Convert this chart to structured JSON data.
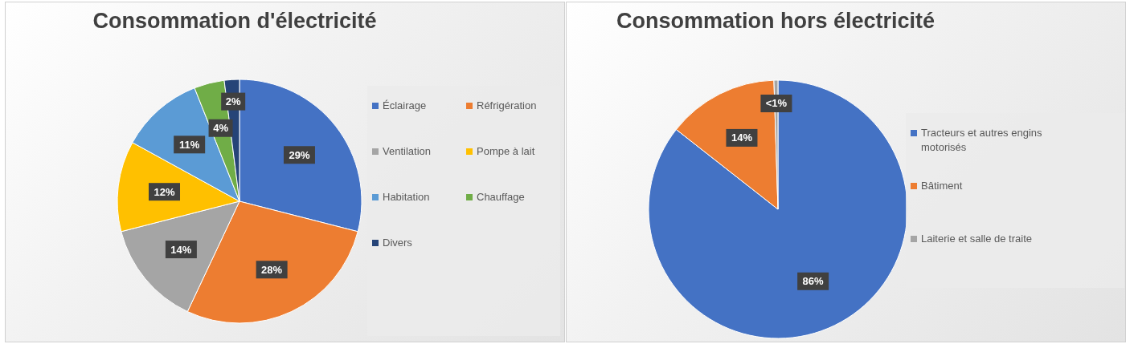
{
  "chart_data": [
    {
      "type": "pie",
      "title": "Consommation d'électricité",
      "categories": [
        "Éclairage",
        "Réfrigération",
        "Ventilation",
        "Pompe à lait",
        "Habitation",
        "Chauffage",
        "Divers"
      ],
      "values": [
        29,
        28,
        14,
        12,
        11,
        4,
        2
      ],
      "colors": [
        "#4472c4",
        "#ed7d31",
        "#a5a5a5",
        "#ffc000",
        "#5b9bd5",
        "#70ad47",
        "#264478"
      ],
      "value_labels": [
        "29%",
        "28%",
        "14%",
        "12%",
        "11%",
        "4%",
        "2%"
      ],
      "legend": "right"
    },
    {
      "type": "pie",
      "title": "Consommation hors électricité",
      "categories": [
        "Tracteurs et autres engins motorisés",
        "Bâtiment",
        "Laiterie et salle de traite"
      ],
      "values": [
        85.6,
        13.9,
        0.5
      ],
      "colors": [
        "#4472c4",
        "#ed7d31",
        "#a5a5a5"
      ],
      "value_labels": [
        "86%",
        "14%",
        "<1%"
      ],
      "legend": "right"
    }
  ]
}
